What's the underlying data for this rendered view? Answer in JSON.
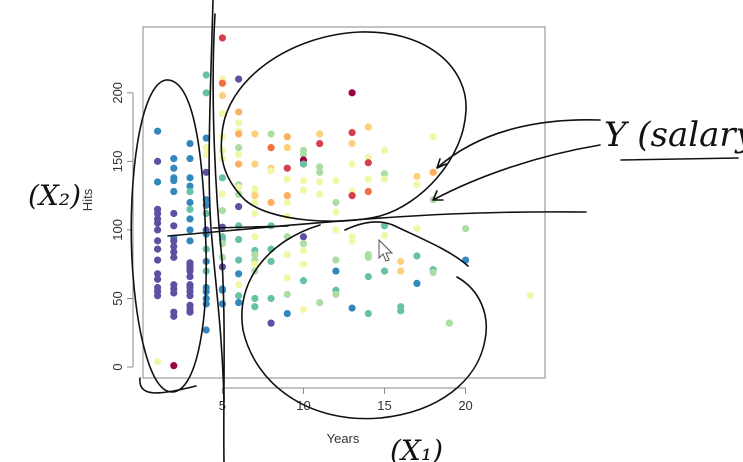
{
  "chart_data": {
    "type": "scatter",
    "xlabel": "Years",
    "ylabel": "Hits",
    "xlim": [
      0.1,
      24.9
    ],
    "ylim": [
      -8,
      248
    ],
    "xticks": [
      5,
      10,
      15,
      20
    ],
    "yticks": [
      0,
      50,
      100,
      150,
      200
    ],
    "grid": false,
    "color_scale": "salary, spectral (purple = low, dark red = high)",
    "palette": {
      "P": "#5e4fa2",
      "B": "#3288bd",
      "T": "#66c2a5",
      "G": "#abdda4",
      "Y": "#f2f7a8",
      "O": "#fdd07a",
      "A": "#fdae61",
      "E": "#f46d43",
      "R": "#d53e4f",
      "D": "#9e0142"
    },
    "points": [
      [
        1,
        172,
        "B"
      ],
      [
        1,
        150,
        "P"
      ],
      [
        1,
        135,
        "B"
      ],
      [
        1,
        115,
        "P"
      ],
      [
        1,
        112,
        "P"
      ],
      [
        1,
        108,
        "P"
      ],
      [
        1,
        105,
        "P"
      ],
      [
        1,
        100,
        "P"
      ],
      [
        1,
        92,
        "P"
      ],
      [
        1,
        86,
        "P"
      ],
      [
        1,
        78,
        "P"
      ],
      [
        1,
        68,
        "P"
      ],
      [
        1,
        64,
        "P"
      ],
      [
        1,
        58,
        "P"
      ],
      [
        1,
        55,
        "P"
      ],
      [
        1,
        52,
        "P"
      ],
      [
        1,
        4,
        "Y"
      ],
      [
        2,
        152,
        "B"
      ],
      [
        2,
        145,
        "B"
      ],
      [
        2,
        138,
        "B"
      ],
      [
        2,
        136,
        "B"
      ],
      [
        2,
        128,
        "B"
      ],
      [
        2,
        112,
        "P"
      ],
      [
        2,
        103,
        "P"
      ],
      [
        2,
        94,
        "B"
      ],
      [
        2,
        92,
        "P"
      ],
      [
        2,
        88,
        "P"
      ],
      [
        2,
        84,
        "P"
      ],
      [
        2,
        80,
        "P"
      ],
      [
        2,
        60,
        "P"
      ],
      [
        2,
        57,
        "P"
      ],
      [
        2,
        54,
        "P"
      ],
      [
        2,
        40,
        "P"
      ],
      [
        2,
        37,
        "P"
      ],
      [
        2,
        1,
        "D"
      ],
      [
        3,
        163,
        "B"
      ],
      [
        3,
        152,
        "B"
      ],
      [
        3,
        138,
        "B"
      ],
      [
        3,
        132,
        "B"
      ],
      [
        3,
        128,
        "T"
      ],
      [
        3,
        120,
        "B"
      ],
      [
        3,
        115,
        "T"
      ],
      [
        3,
        108,
        "B"
      ],
      [
        3,
        100,
        "B"
      ],
      [
        3,
        92,
        "B"
      ],
      [
        3,
        76,
        "P"
      ],
      [
        3,
        74,
        "P"
      ],
      [
        3,
        72,
        "P"
      ],
      [
        3,
        70,
        "P"
      ],
      [
        3,
        66,
        "P"
      ],
      [
        3,
        60,
        "P"
      ],
      [
        3,
        58,
        "P"
      ],
      [
        3,
        55,
        "P"
      ],
      [
        3,
        52,
        "P"
      ],
      [
        3,
        45,
        "P"
      ],
      [
        3,
        42,
        "P"
      ],
      [
        3,
        40,
        "P"
      ],
      [
        4,
        213,
        "T"
      ],
      [
        4,
        200,
        "T"
      ],
      [
        4,
        167,
        "B"
      ],
      [
        4,
        160,
        "Y"
      ],
      [
        4,
        155,
        "Y"
      ],
      [
        4,
        142,
        "P"
      ],
      [
        4,
        122,
        "B"
      ],
      [
        4,
        118,
        "B"
      ],
      [
        4,
        112,
        "T"
      ],
      [
        4,
        100,
        "P"
      ],
      [
        4,
        97,
        "B"
      ],
      [
        4,
        86,
        "T"
      ],
      [
        4,
        77,
        "B"
      ],
      [
        4,
        70,
        "T"
      ],
      [
        4,
        58,
        "B"
      ],
      [
        4,
        55,
        "B"
      ],
      [
        4,
        50,
        "B"
      ],
      [
        4,
        46,
        "B"
      ],
      [
        4,
        27,
        "B"
      ],
      [
        5,
        240,
        "R"
      ],
      [
        5,
        210,
        "Y"
      ],
      [
        5,
        207,
        "E"
      ],
      [
        5,
        198,
        "O"
      ],
      [
        5,
        185,
        "Y"
      ],
      [
        5,
        168,
        "Y"
      ],
      [
        5,
        158,
        "Y"
      ],
      [
        5,
        152,
        "Y"
      ],
      [
        5,
        138,
        "T"
      ],
      [
        5,
        126,
        "Y"
      ],
      [
        5,
        114,
        "G"
      ],
      [
        5,
        102,
        "P"
      ],
      [
        5,
        95,
        "T"
      ],
      [
        5,
        93,
        "T"
      ],
      [
        5,
        90,
        "G"
      ],
      [
        5,
        80,
        "G"
      ],
      [
        5,
        73,
        "P"
      ],
      [
        5,
        57,
        "B"
      ],
      [
        5,
        56,
        "B"
      ],
      [
        5,
        46,
        "B"
      ],
      [
        6,
        210,
        "P"
      ],
      [
        6,
        186,
        "A"
      ],
      [
        6,
        178,
        "Y"
      ],
      [
        6,
        172,
        "Y"
      ],
      [
        6,
        170,
        "A"
      ],
      [
        6,
        160,
        "G"
      ],
      [
        6,
        155,
        "Y"
      ],
      [
        6,
        148,
        "A"
      ],
      [
        6,
        133,
        "G"
      ],
      [
        6,
        131,
        "Y"
      ],
      [
        6,
        126,
        "G"
      ],
      [
        6,
        117,
        "P"
      ],
      [
        6,
        103,
        "T"
      ],
      [
        6,
        93,
        "T"
      ],
      [
        6,
        78,
        "T"
      ],
      [
        6,
        68,
        "B"
      ],
      [
        6,
        60,
        "Y"
      ],
      [
        6,
        52,
        "T"
      ],
      [
        6,
        47,
        "B"
      ],
      [
        7,
        170,
        "O"
      ],
      [
        7,
        148,
        "O"
      ],
      [
        7,
        130,
        "Y"
      ],
      [
        7,
        127,
        "Y"
      ],
      [
        7,
        125,
        "O"
      ],
      [
        7,
        120,
        "Y"
      ],
      [
        7,
        112,
        "Y"
      ],
      [
        7,
        95,
        "Y"
      ],
      [
        7,
        85,
        "T"
      ],
      [
        7,
        82,
        "G"
      ],
      [
        7,
        78,
        "G"
      ],
      [
        7,
        75,
        "Y"
      ],
      [
        7,
        70,
        "G"
      ],
      [
        7,
        50,
        "T"
      ],
      [
        7,
        44,
        "T"
      ],
      [
        8,
        170,
        "G"
      ],
      [
        8,
        160,
        "E"
      ],
      [
        8,
        145,
        "O"
      ],
      [
        8,
        143,
        "Y"
      ],
      [
        8,
        120,
        "A"
      ],
      [
        8,
        103,
        "T"
      ],
      [
        8,
        86,
        "T"
      ],
      [
        8,
        77,
        "T"
      ],
      [
        8,
        50,
        "T"
      ],
      [
        8,
        32,
        "P"
      ],
      [
        9,
        168,
        "A"
      ],
      [
        9,
        160,
        "O"
      ],
      [
        9,
        145,
        "R"
      ],
      [
        9,
        137,
        "Y"
      ],
      [
        9,
        125,
        "A"
      ],
      [
        9,
        120,
        "Y"
      ],
      [
        9,
        110,
        "Y"
      ],
      [
        9,
        95,
        "G"
      ],
      [
        9,
        82,
        "Y"
      ],
      [
        9,
        65,
        "Y"
      ],
      [
        9,
        53,
        "G"
      ],
      [
        9,
        39,
        "B"
      ],
      [
        10,
        158,
        "G"
      ],
      [
        10,
        155,
        "G"
      ],
      [
        10,
        151,
        "D"
      ],
      [
        10,
        148,
        "T"
      ],
      [
        10,
        136,
        "Y"
      ],
      [
        10,
        129,
        "Y"
      ],
      [
        10,
        95,
        "P"
      ],
      [
        10,
        90,
        "G"
      ],
      [
        10,
        85,
        "Y"
      ],
      [
        10,
        75,
        "Y"
      ],
      [
        10,
        63,
        "T"
      ],
      [
        10,
        42,
        "Y"
      ],
      [
        11,
        170,
        "O"
      ],
      [
        11,
        163,
        "R"
      ],
      [
        11,
        146,
        "G"
      ],
      [
        11,
        142,
        "G"
      ],
      [
        11,
        135,
        "Y"
      ],
      [
        11,
        126,
        "Y"
      ],
      [
        11,
        47,
        "G"
      ],
      [
        12,
        136,
        "Y"
      ],
      [
        12,
        120,
        "G"
      ],
      [
        12,
        113,
        "Y"
      ],
      [
        12,
        100,
        "Y"
      ],
      [
        12,
        78,
        "G"
      ],
      [
        12,
        70,
        "B"
      ],
      [
        12,
        56,
        "T"
      ],
      [
        12,
        53,
        "G"
      ],
      [
        13,
        200,
        "D"
      ],
      [
        13,
        171,
        "R"
      ],
      [
        13,
        163,
        "O"
      ],
      [
        13,
        148,
        "Y"
      ],
      [
        13,
        128,
        "Y"
      ],
      [
        13,
        125,
        "R"
      ],
      [
        13,
        95,
        "Y"
      ],
      [
        13,
        92,
        "Y"
      ],
      [
        13,
        43,
        "B"
      ],
      [
        14,
        175,
        "O"
      ],
      [
        14,
        153,
        "Y"
      ],
      [
        14,
        149,
        "R"
      ],
      [
        14,
        137,
        "Y"
      ],
      [
        14,
        128,
        "E"
      ],
      [
        14,
        82,
        "G"
      ],
      [
        14,
        80,
        "G"
      ],
      [
        14,
        66,
        "T"
      ],
      [
        14,
        39,
        "T"
      ],
      [
        15,
        158,
        "Y"
      ],
      [
        15,
        141,
        "G"
      ],
      [
        15,
        137,
        "Y"
      ],
      [
        15,
        103,
        "T"
      ],
      [
        15,
        96,
        "Y"
      ],
      [
        15,
        70,
        "T"
      ],
      [
        16,
        77,
        "O"
      ],
      [
        16,
        70,
        "O"
      ],
      [
        16,
        44,
        "T"
      ],
      [
        16,
        41,
        "T"
      ],
      [
        17,
        139,
        "O"
      ],
      [
        17,
        133,
        "Y"
      ],
      [
        17,
        101,
        "Y"
      ],
      [
        17,
        81,
        "T"
      ],
      [
        17,
        61,
        "B"
      ],
      [
        18,
        168,
        "Y"
      ],
      [
        18,
        142,
        "A"
      ],
      [
        18,
        122,
        "G"
      ],
      [
        18,
        71,
        "T"
      ],
      [
        18,
        69,
        "G"
      ],
      [
        19,
        32,
        "G"
      ],
      [
        20,
        101,
        "G"
      ],
      [
        20,
        78,
        "B"
      ],
      [
        24,
        52,
        "Y"
      ]
    ]
  },
  "annotations": {
    "y_note": "Y (salary)",
    "x2_note": "(X₂)",
    "x1_note": "(X₁)"
  }
}
